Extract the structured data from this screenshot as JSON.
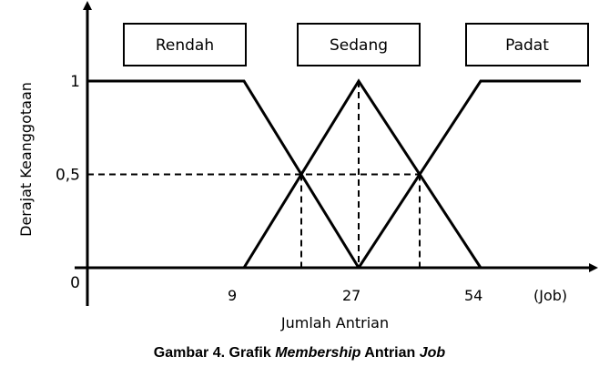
{
  "chart_data": {
    "type": "line",
    "xlabel": "Jumlah Antrian",
    "ylabel": "Derajat Keanggotaan",
    "x_unit": "(Job)",
    "x_ticks": [
      {
        "value": 9,
        "label": "9"
      },
      {
        "value": 27,
        "label": "27"
      },
      {
        "value": 54,
        "label": "54"
      }
    ],
    "y_ticks": [
      {
        "value": 0,
        "label": "0"
      },
      {
        "value": 0.5,
        "label": "0,5"
      },
      {
        "value": 1,
        "label": "1"
      }
    ],
    "ylim": [
      0,
      1
    ],
    "series": [
      {
        "name": "Rendah",
        "points": [
          [
            0,
            1
          ],
          [
            9,
            1
          ],
          [
            27,
            0
          ]
        ]
      },
      {
        "name": "Sedang",
        "points": [
          [
            9,
            0
          ],
          [
            27,
            1
          ],
          [
            54,
            0
          ]
        ]
      },
      {
        "name": "Padat",
        "points": [
          [
            27,
            0
          ],
          [
            54,
            1
          ],
          [
            70,
            1
          ]
        ]
      }
    ],
    "crossover_points": [
      [
        18,
        0.5
      ],
      [
        40.5,
        0.5
      ]
    ]
  },
  "caption": {
    "prefix": "Gambar 4. Grafik ",
    "italic_1": "Membership",
    "middle": " Antrian ",
    "italic_2": "Job"
  }
}
